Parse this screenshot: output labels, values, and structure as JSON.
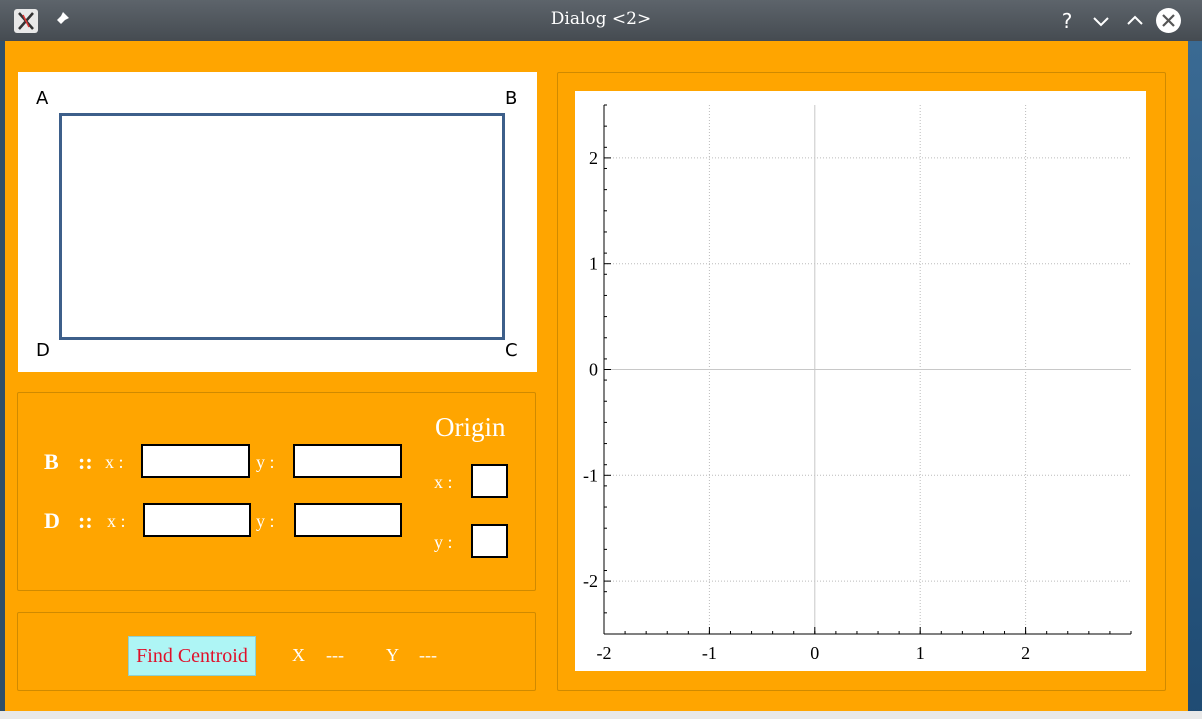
{
  "window": {
    "title": "Dialog <2>"
  },
  "titlebar": {
    "help": "?",
    "minimize": "⌄",
    "maximize": "⌃"
  },
  "diagram": {
    "corners": {
      "a": "A",
      "b": "B",
      "c": "C",
      "d": "D"
    }
  },
  "inputs": {
    "b_label": "B",
    "d_label": "D",
    "separator": "::",
    "x_label": "x :",
    "y_label": "y :",
    "b_x": "",
    "b_y": "",
    "d_x": "",
    "d_y": ""
  },
  "origin": {
    "title": "Origin",
    "x_label": "x :",
    "y_label": "y :",
    "x": "",
    "y": ""
  },
  "result": {
    "button": "Find Centroid",
    "x_label": "X",
    "x_value": "---",
    "y_label": "Y",
    "y_value": "---"
  },
  "chart_data": {
    "type": "line",
    "series": [],
    "xlim": [
      -2,
      3
    ],
    "ylim": [
      -2.5,
      2.5
    ],
    "x_ticks": [
      -2,
      -1,
      0,
      1,
      2
    ],
    "y_ticks": [
      -2,
      -1,
      0,
      1,
      2
    ],
    "x_tick_labels": [
      "-2",
      "-1",
      "0",
      "1",
      "2"
    ],
    "y_tick_labels": [
      "-2",
      "-1",
      "0",
      "1",
      "2"
    ],
    "grid": true
  }
}
